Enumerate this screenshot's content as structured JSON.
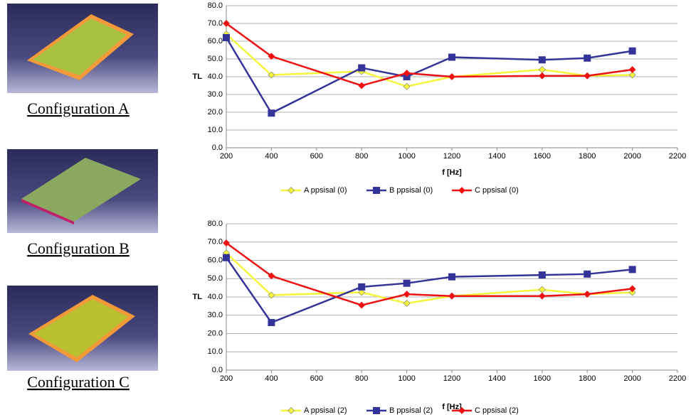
{
  "configurations": [
    {
      "label": "Configuration A",
      "color": "#f0f000"
    },
    {
      "label": "Configuration B",
      "color": "#2a2a8c"
    },
    {
      "label": "Configuration C",
      "color": "#e01010"
    }
  ],
  "chart_data": [
    {
      "type": "line",
      "xlabel": "f [Hz]",
      "ylabel": "TL",
      "x": [
        200,
        400,
        800,
        1000,
        1200,
        1600,
        1800,
        2000
      ],
      "xlim": [
        200,
        2200
      ],
      "xticks": [
        200,
        400,
        600,
        800,
        1000,
        1200,
        1400,
        1600,
        1800,
        2000,
        2200
      ],
      "ylim": [
        0,
        80
      ],
      "yticks": [
        {
          "value": 0,
          "label": "0.0"
        },
        {
          "value": 10,
          "label": "10.0"
        },
        {
          "value": 20,
          "label": "20.0"
        },
        {
          "value": 30,
          "label": "30.0"
        },
        {
          "value": 40,
          "label": "40.0"
        },
        {
          "value": 50,
          "label": "50.0"
        },
        {
          "value": 60,
          "label": "60.0"
        },
        {
          "value": 70,
          "label": "70.0"
        },
        {
          "value": 80,
          "label": "80.0"
        }
      ],
      "grid": true,
      "legend": "bottom",
      "series": [
        {
          "name": "A ppsisal (0)",
          "color": "#f5f53a",
          "marker": "diamond",
          "values": [
            64,
            41,
            43,
            34.5,
            40,
            44,
            40.5,
            41
          ]
        },
        {
          "name": "B ppsisal (0)",
          "color": "#333399",
          "marker": "square",
          "values": [
            62,
            19.5,
            45,
            40,
            51,
            49.5,
            50.5,
            54.5
          ]
        },
        {
          "name": "C ppsisal (0)",
          "color": "#ee1111",
          "marker": "diamond",
          "values": [
            70,
            51.5,
            35,
            42,
            40,
            40.5,
            40.5,
            44
          ]
        }
      ]
    },
    {
      "type": "line",
      "xlabel": "f [Hz]",
      "ylabel": "TL",
      "x": [
        200,
        400,
        800,
        1000,
        1200,
        1600,
        1800,
        2000
      ],
      "xlim": [
        200,
        2200
      ],
      "xticks": [
        200,
        400,
        600,
        800,
        1000,
        1200,
        1400,
        1600,
        1800,
        2000,
        2200
      ],
      "ylim": [
        0,
        80
      ],
      "yticks": [
        {
          "value": 0,
          "label": "0.0"
        },
        {
          "value": 10,
          "label": "10.0"
        },
        {
          "value": 20,
          "label": "20.0"
        },
        {
          "value": 30,
          "label": "30.0"
        },
        {
          "value": 40,
          "label": "40.0"
        },
        {
          "value": 50,
          "label": "50.0"
        },
        {
          "value": 60,
          "label": "60.0"
        },
        {
          "value": 70,
          "label": "70.0"
        },
        {
          "value": 80,
          "label": "80.0"
        }
      ],
      "grid": true,
      "legend": "bottom",
      "series": [
        {
          "name": "A ppsisal (2)",
          "color": "#f5f53a",
          "marker": "diamond",
          "values": [
            64,
            41,
            42.5,
            36.5,
            40.5,
            44,
            41.5,
            42.5
          ]
        },
        {
          "name": "B ppsisal (2)",
          "color": "#333399",
          "marker": "square",
          "values": [
            61.5,
            26,
            45.5,
            47.5,
            51,
            52,
            52.5,
            55
          ]
        },
        {
          "name": "C ppsisal (2)",
          "color": "#ee1111",
          "marker": "diamond",
          "values": [
            69.5,
            51.5,
            35.5,
            41.5,
            40.5,
            40.5,
            41.5,
            44.5
          ]
        }
      ]
    }
  ]
}
